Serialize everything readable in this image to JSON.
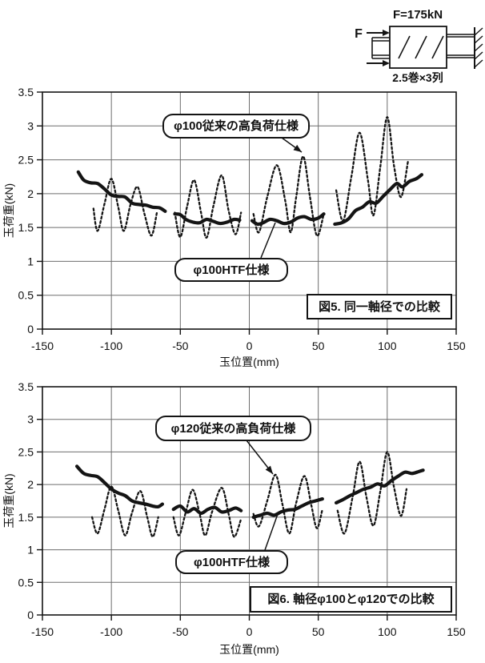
{
  "diagram": {
    "force_label": "F=175kN",
    "f_label": "F",
    "coil_label": "2.5巻×3列"
  },
  "chart_data": [
    {
      "type": "line",
      "title_box": "図5. 同一軸径での比較",
      "xlabel": "玉位置(mm)",
      "ylabel": "玉荷重(kN)",
      "xlim": [
        -150,
        150
      ],
      "ylim": [
        0,
        3.5
      ],
      "grid": true,
      "legend_position": "none",
      "xticks": {
        "values": [
          -150,
          -100,
          -50,
          0,
          50,
          100,
          150
        ],
        "labels": [
          "-150",
          "-100",
          "-50",
          "0",
          "50",
          "100",
          "150"
        ]
      },
      "yticks": {
        "values": [
          0,
          0.5,
          1,
          1.5,
          2,
          2.5,
          3,
          3.5
        ],
        "labels": [
          "0",
          "0.5",
          "1",
          "1.5",
          "2",
          "2.5",
          "3",
          "3.5"
        ]
      },
      "annotations": [
        {
          "text": "φ100従来の高負荷仕様",
          "points_to": "dotted series peak near x=39, y=2.55"
        },
        {
          "text": "φ100HTF仕様",
          "points_to": "solid series near x=18, y=1.6"
        }
      ],
      "series": [
        {
          "name": "φ100従来の高負荷仕様",
          "line": "dotted",
          "segments": [
            [
              [
                -113,
                1.78
              ],
              [
                -110,
                1.45
              ],
              [
                -105,
                1.85
              ],
              [
                -100,
                2.22
              ],
              [
                -95,
                1.8
              ],
              [
                -91,
                1.45
              ],
              [
                -86,
                1.85
              ],
              [
                -81,
                2.1
              ],
              [
                -76,
                1.7
              ],
              [
                -71,
                1.38
              ],
              [
                -67,
                1.72
              ]
            ],
            [
              [
                -54,
                1.72
              ],
              [
                -50,
                1.36
              ],
              [
                -45,
                1.82
              ],
              [
                -40,
                2.2
              ],
              [
                -35,
                1.72
              ],
              [
                -31,
                1.35
              ],
              [
                -26,
                1.82
              ],
              [
                -20,
                2.27
              ],
              [
                -15,
                1.75
              ],
              [
                -10,
                1.4
              ],
              [
                -6,
                1.72
              ]
            ],
            [
              [
                3,
                1.7
              ],
              [
                7,
                1.43
              ],
              [
                13,
                1.95
              ],
              [
                20,
                2.42
              ],
              [
                26,
                1.9
              ],
              [
                30,
                1.43
              ],
              [
                34,
                1.95
              ],
              [
                39,
                2.55
              ],
              [
                44,
                1.95
              ],
              [
                49,
                1.38
              ],
              [
                54,
                1.7
              ]
            ],
            [
              [
                63,
                2.05
              ],
              [
                68,
                1.6
              ],
              [
                74,
                2.25
              ],
              [
                80,
                2.9
              ],
              [
                86,
                2.2
              ],
              [
                90,
                1.68
              ],
              [
                95,
                2.4
              ],
              [
                100,
                3.13
              ],
              [
                105,
                2.4
              ],
              [
                110,
                1.95
              ],
              [
                115,
                2.47
              ]
            ]
          ]
        },
        {
          "name": "φ100HTF仕様",
          "line": "solid",
          "segments": [
            [
              [
                -124,
                2.32
              ],
              [
                -120,
                2.2
              ],
              [
                -115,
                2.16
              ],
              [
                -110,
                2.15
              ],
              [
                -105,
                2.07
              ],
              [
                -100,
                1.98
              ],
              [
                -95,
                1.96
              ],
              [
                -90,
                1.95
              ],
              [
                -85,
                1.86
              ],
              [
                -80,
                1.84
              ],
              [
                -75,
                1.83
              ],
              [
                -70,
                1.8
              ],
              [
                -65,
                1.79
              ],
              [
                -61,
                1.74
              ]
            ],
            [
              [
                -54,
                1.7
              ],
              [
                -50,
                1.69
              ],
              [
                -46,
                1.62
              ],
              [
                -41,
                1.58
              ],
              [
                -36,
                1.57
              ],
              [
                -31,
                1.62
              ],
              [
                -26,
                1.59
              ],
              [
                -21,
                1.56
              ],
              [
                -16,
                1.58
              ],
              [
                -11,
                1.62
              ],
              [
                -7,
                1.61
              ]
            ],
            [
              [
                2,
                1.6
              ],
              [
                6,
                1.55
              ],
              [
                10,
                1.57
              ],
              [
                15,
                1.62
              ],
              [
                20,
                1.6
              ],
              [
                25,
                1.56
              ],
              [
                30,
                1.58
              ],
              [
                35,
                1.64
              ],
              [
                40,
                1.66
              ],
              [
                45,
                1.62
              ],
              [
                50,
                1.64
              ],
              [
                54,
                1.7
              ]
            ],
            [
              [
                62,
                1.55
              ],
              [
                67,
                1.57
              ],
              [
                72,
                1.63
              ],
              [
                77,
                1.75
              ],
              [
                82,
                1.8
              ],
              [
                87,
                1.88
              ],
              [
                92,
                1.86
              ],
              [
                97,
                1.96
              ],
              [
                102,
                2.06
              ],
              [
                107,
                2.15
              ],
              [
                111,
                2.1
              ],
              [
                116,
                2.18
              ],
              [
                121,
                2.22
              ],
              [
                125,
                2.28
              ]
            ]
          ]
        }
      ]
    },
    {
      "type": "line",
      "title_box": "図6. 軸径φ100とφ120での比較",
      "xlabel": "玉位置(mm)",
      "ylabel": "玉荷重(kN)",
      "xlim": [
        -150,
        150
      ],
      "ylim": [
        0,
        3.5
      ],
      "grid": true,
      "legend_position": "none",
      "xticks": {
        "values": [
          -150,
          -100,
          -50,
          0,
          50,
          100,
          150
        ],
        "labels": [
          "-150",
          "-100",
          "-50",
          "0",
          "50",
          "100",
          "150"
        ]
      },
      "yticks": {
        "values": [
          0,
          0.5,
          1,
          1.5,
          2,
          2.5,
          3,
          3.5
        ],
        "labels": [
          "0",
          "0.5",
          "1",
          "1.5",
          "2",
          "2.5",
          "3",
          "3.5"
        ]
      },
      "annotations": [
        {
          "text": "φ120従来の高負荷仕様",
          "points_to": "dotted series peak near x=19, y=2.15"
        },
        {
          "text": "φ100HTF仕様",
          "points_to": "solid series near x=20, y=1.55"
        }
      ],
      "series": [
        {
          "name": "φ120従来の高負荷仕様",
          "line": "dotted",
          "segments": [
            [
              [
                -114,
                1.5
              ],
              [
                -110,
                1.25
              ],
              [
                -105,
                1.62
              ],
              [
                -100,
                1.97
              ],
              [
                -95,
                1.6
              ],
              [
                -90,
                1.22
              ],
              [
                -85,
                1.57
              ],
              [
                -79,
                1.9
              ],
              [
                -74,
                1.5
              ],
              [
                -70,
                1.2
              ],
              [
                -66,
                1.5
              ]
            ],
            [
              [
                -55,
                1.5
              ],
              [
                -51,
                1.22
              ],
              [
                -46,
                1.58
              ],
              [
                -41,
                1.92
              ],
              [
                -36,
                1.55
              ],
              [
                -32,
                1.22
              ],
              [
                -27,
                1.58
              ],
              [
                -20,
                1.95
              ],
              [
                -15,
                1.55
              ],
              [
                -11,
                1.2
              ],
              [
                -6,
                1.47
              ]
            ],
            [
              [
                3,
                1.55
              ],
              [
                7,
                1.36
              ],
              [
                13,
                1.75
              ],
              [
                19,
                2.15
              ],
              [
                24,
                1.7
              ],
              [
                29,
                1.25
              ],
              [
                34,
                1.72
              ],
              [
                40,
                2.13
              ],
              [
                45,
                1.68
              ],
              [
                49,
                1.33
              ],
              [
                53,
                1.62
              ]
            ],
            [
              [
                64,
                1.6
              ],
              [
                69,
                1.25
              ],
              [
                75,
                1.82
              ],
              [
                80,
                2.35
              ],
              [
                85,
                1.8
              ],
              [
                90,
                1.37
              ],
              [
                95,
                1.9
              ],
              [
                100,
                2.5
              ],
              [
                105,
                1.95
              ],
              [
                110,
                1.52
              ],
              [
                114,
                1.93
              ]
            ]
          ]
        },
        {
          "name": "φ100HTF仕様",
          "line": "solid",
          "segments": [
            [
              [
                -125,
                2.28
              ],
              [
                -120,
                2.17
              ],
              [
                -115,
                2.14
              ],
              [
                -110,
                2.12
              ],
              [
                -105,
                2.03
              ],
              [
                -100,
                1.93
              ],
              [
                -95,
                1.87
              ],
              [
                -90,
                1.83
              ],
              [
                -85,
                1.75
              ],
              [
                -80,
                1.72
              ],
              [
                -75,
                1.7
              ],
              [
                -70,
                1.67
              ],
              [
                -66,
                1.66
              ],
              [
                -63,
                1.7
              ]
            ],
            [
              [
                -55,
                1.62
              ],
              [
                -50,
                1.67
              ],
              [
                -45,
                1.58
              ],
              [
                -40,
                1.63
              ],
              [
                -35,
                1.56
              ],
              [
                -30,
                1.62
              ],
              [
                -25,
                1.65
              ],
              [
                -20,
                1.58
              ],
              [
                -15,
                1.6
              ],
              [
                -10,
                1.64
              ],
              [
                -6,
                1.6
              ]
            ],
            [
              [
                3,
                1.5
              ],
              [
                8,
                1.53
              ],
              [
                13,
                1.56
              ],
              [
                18,
                1.53
              ],
              [
                23,
                1.58
              ],
              [
                28,
                1.61
              ],
              [
                33,
                1.62
              ],
              [
                38,
                1.67
              ],
              [
                43,
                1.72
              ],
              [
                48,
                1.75
              ],
              [
                53,
                1.78
              ]
            ],
            [
              [
                63,
                1.72
              ],
              [
                68,
                1.77
              ],
              [
                73,
                1.83
              ],
              [
                78,
                1.88
              ],
              [
                83,
                1.93
              ],
              [
                88,
                1.96
              ],
              [
                93,
                2.01
              ],
              [
                98,
                1.98
              ],
              [
                103,
                2.06
              ],
              [
                108,
                2.13
              ],
              [
                113,
                2.19
              ],
              [
                118,
                2.17
              ],
              [
                123,
                2.2
              ],
              [
                126,
                2.22
              ]
            ]
          ]
        }
      ]
    }
  ],
  "colors": {
    "ink": "#141414",
    "grid": "#6e6e6e",
    "paper": "#ffffff"
  }
}
